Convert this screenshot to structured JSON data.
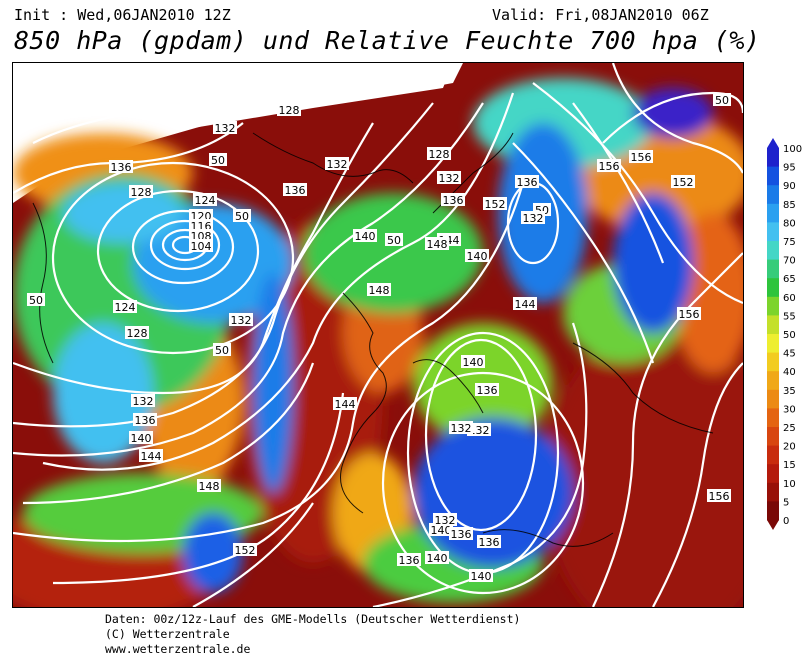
{
  "header": {
    "init": "Init : Wed,06JAN2010 12Z",
    "valid": "Valid: Fri,08JAN2010 06Z",
    "title": "850 hPa (gpdam) und Relative Feuchte 700 hpa (%)"
  },
  "map": {
    "contour_labels": [
      "128",
      "132",
      "136",
      "128",
      "124",
      "120",
      "116",
      "108",
      "104",
      "50",
      "50",
      "50",
      "136",
      "132",
      "132",
      "128",
      "132",
      "136",
      "136",
      "140",
      "144",
      "148",
      "50",
      "50",
      "132",
      "124",
      "128",
      "50",
      "132",
      "136",
      "140",
      "144",
      "148",
      "152",
      "156",
      "156",
      "152",
      "136",
      "132",
      "140",
      "144",
      "140",
      "136",
      "132",
      "132",
      "136",
      "136",
      "140",
      "140",
      "140",
      "144",
      "148",
      "152",
      "156",
      "156",
      "50"
    ]
  },
  "legend": {
    "ticks": [
      "100",
      "95",
      "90",
      "85",
      "80",
      "75",
      "70",
      "65",
      "60",
      "55",
      "50",
      "45",
      "40",
      "35",
      "30",
      "25",
      "20",
      "15",
      "10",
      "5",
      "0"
    ],
    "colors": [
      "#1e22cc",
      "#1452e0",
      "#1a7be8",
      "#2aa0f0",
      "#43c0f0",
      "#44d6c6",
      "#36cc7a",
      "#2ec43c",
      "#7cd42c",
      "#c4e02a",
      "#eeee30",
      "#f2cc20",
      "#f0a818",
      "#ec8a14",
      "#e46412",
      "#d84610",
      "#c82c0e",
      "#b41a0c",
      "#981008",
      "#7a0806"
    ]
  },
  "footer": {
    "line1": "Daten: 00z/12z-Lauf des GME-Modells (Deutscher Wetterdienst)",
    "line2": "(C) Wetterzentrale",
    "line3": "www.wetterzentrale.de"
  },
  "colors": {
    "accent": "#0000ff",
    "contour": "#ffffff",
    "coast": "#000000"
  }
}
